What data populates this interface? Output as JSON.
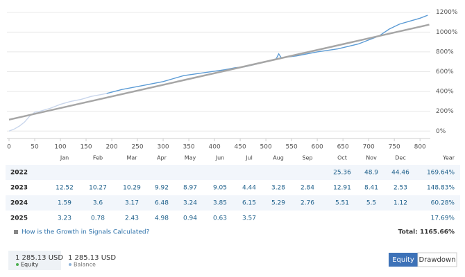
{
  "chart_data": {
    "type": "line",
    "xlim": [
      0,
      820
    ],
    "xticks": [
      0,
      50,
      100,
      150,
      200,
      250,
      300,
      350,
      400,
      450,
      500,
      550,
      600,
      650,
      700,
      750,
      800
    ],
    "ylim": [
      -40,
      1240
    ],
    "yticks": [
      {
        "value": 0,
        "label": "0%"
      },
      {
        "value": 200,
        "label": "200%"
      },
      {
        "value": 400,
        "label": "400%"
      },
      {
        "value": 600,
        "label": "600%"
      },
      {
        "value": 800,
        "label": "800%"
      },
      {
        "value": 1000,
        "label": "1000%"
      },
      {
        "value": 1200,
        "label": "1200%"
      }
    ],
    "grid": true,
    "series": [
      {
        "color": "#c9d6ec",
        "x": [
          0,
          10,
          20,
          30,
          40,
          50,
          60,
          80,
          100,
          120,
          140,
          160,
          180,
          190
        ],
        "values": [
          0,
          20,
          50,
          90,
          150,
          190,
          200,
          230,
          270,
          300,
          320,
          350,
          370,
          380
        ]
      },
      {
        "color": "#5b9bd5",
        "x": [
          190,
          220,
          260,
          300,
          320,
          340,
          380,
          420,
          440,
          460,
          500,
          520,
          525,
          530,
          560,
          600,
          640,
          680,
          700,
          720,
          740,
          760,
          780,
          800,
          815
        ],
        "values": [
          380,
          420,
          460,
          500,
          530,
          560,
          590,
          620,
          640,
          650,
          700,
          730,
          780,
          740,
          760,
          800,
          830,
          880,
          920,
          960,
          1030,
          1080,
          1110,
          1140,
          1170
        ]
      },
      {
        "color": "#a6a6a6",
        "x": [
          0,
          818
        ],
        "values": [
          115,
          1075
        ]
      }
    ]
  },
  "table": {
    "header": [
      "Jan",
      "Feb",
      "Mar",
      "Apr",
      "May",
      "Jun",
      "Jul",
      "Aug",
      "Sep",
      "Oct",
      "Nov",
      "Dec",
      "Year"
    ],
    "rows": [
      [
        2022,
        null,
        null,
        null,
        null,
        null,
        null,
        null,
        null,
        null,
        25.36,
        48.9,
        44.46,
        "169.64%"
      ],
      [
        2023,
        12.52,
        10.27,
        10.29,
        9.92,
        8.97,
        9.05,
        4.44,
        3.28,
        2.84,
        12.91,
        8.41,
        2.53,
        "148.83%"
      ],
      [
        2024,
        1.59,
        3.6,
        3.17,
        6.48,
        3.24,
        3.85,
        6.15,
        5.29,
        2.76,
        5.51,
        5.5,
        1.12,
        "60.28%"
      ],
      [
        2025,
        3.23,
        0.78,
        2.43,
        4.98,
        0.94,
        0.63,
        3.57,
        null,
        null,
        null,
        null,
        null,
        "17.69%"
      ]
    ]
  },
  "link": "How is the Growth in Signals Calculated?",
  "total": "Total: 1165.66%",
  "equity": {
    "amount": "1 285.13 USD",
    "label": "Equity"
  },
  "balance": {
    "amount": "1 285.13 USD",
    "label": "Balance"
  },
  "buttons": [
    "Equity",
    "Drawdown"
  ]
}
